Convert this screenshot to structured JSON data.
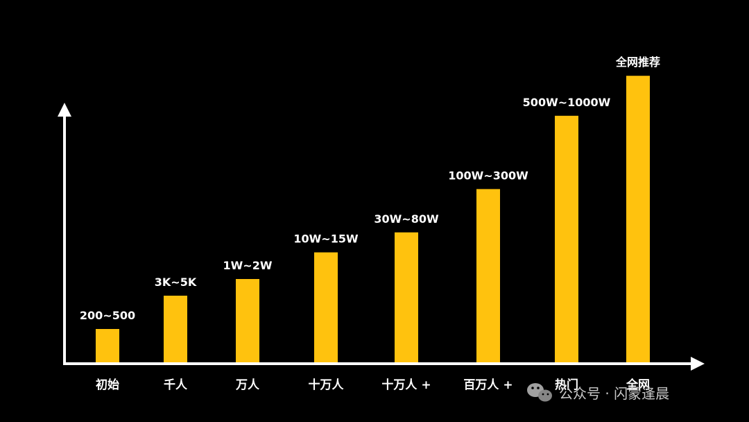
{
  "chart_data": {
    "type": "bar",
    "categories": [
      "初始",
      "千人",
      "万人",
      "十万人",
      "十万人 +",
      "百万人 +",
      "热门",
      "全网"
    ],
    "values": [
      10,
      20,
      25,
      33,
      39,
      52,
      74,
      86
    ],
    "value_labels": [
      "200~500",
      "3K~5K",
      "1W~2W",
      "10W~15W",
      "30W~80W",
      "100W~300W",
      "500W~1000W",
      "全网推荐"
    ],
    "title": "",
    "xlabel": "",
    "ylabel": "",
    "ylim": [
      0,
      100
    ],
    "grid": false,
    "legend": "none",
    "bar_color": "#FFC20E",
    "axis_color": "#FFFFFF",
    "background_color": "#000000"
  },
  "watermark": {
    "icon": "wechat-icon",
    "text": "公众号 · 闪蒙逢晨"
  }
}
